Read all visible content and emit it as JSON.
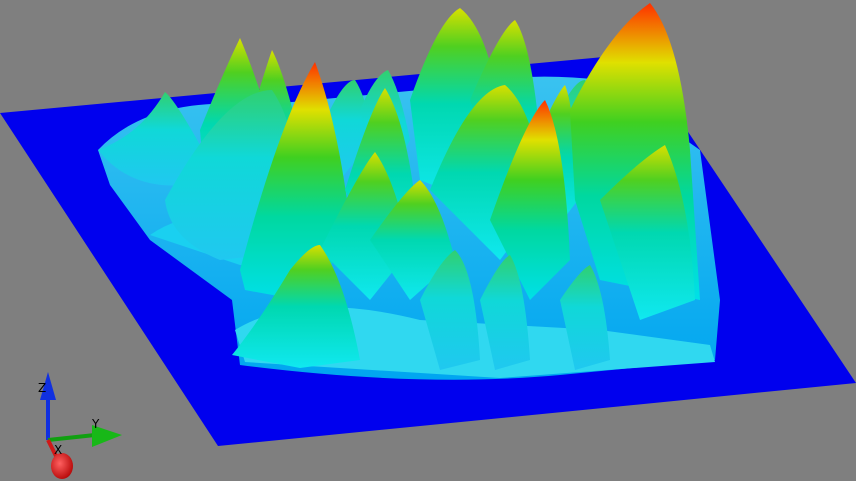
{
  "view": {
    "type": "3d-surface-plot",
    "background": "#7f7f7f",
    "colormap": [
      "#0000ff",
      "#00ffff",
      "#00ff00",
      "#ffff00",
      "#ff0000"
    ],
    "base_plane_color": "#0000ff"
  },
  "axes_triad": {
    "x": {
      "label": "X",
      "color": "#d01818"
    },
    "y": {
      "label": "Y",
      "color": "#10a010"
    },
    "z": {
      "label": "Z",
      "color": "#1030e0"
    }
  }
}
